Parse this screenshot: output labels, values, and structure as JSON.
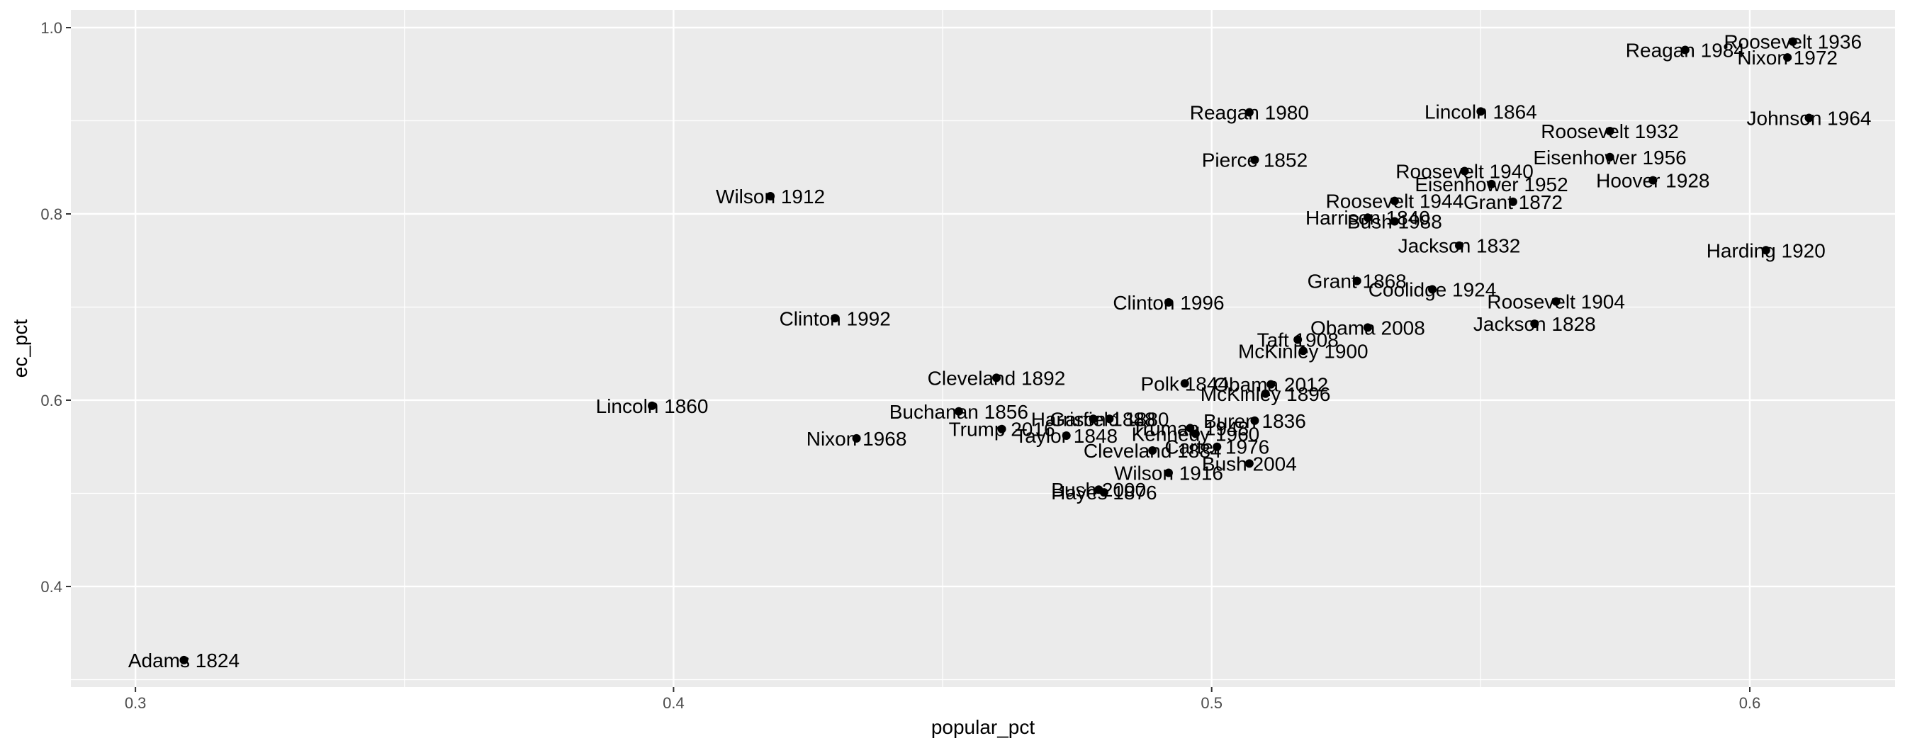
{
  "chart_data": {
    "type": "scatter",
    "xlabel": "popular_pct",
    "ylabel": "ec_pct",
    "xlim": [
      0.288,
      0.627
    ],
    "ylim": [
      0.292,
      1.019
    ],
    "x_ticks": [
      "0.3",
      "0.4",
      "0.5",
      "0.6"
    ],
    "x_tick_values": [
      0.3,
      0.4,
      0.5,
      0.6
    ],
    "y_ticks": [
      "0.4",
      "0.6",
      "0.8",
      "1.0"
    ],
    "y_tick_values": [
      0.4,
      0.6,
      0.8,
      1.0
    ],
    "grid": true,
    "colors": {
      "panel": "#ebebeb",
      "grid": "#ffffff",
      "point": "#000000"
    },
    "points": [
      {
        "label": "Adams 1824",
        "x": 0.309,
        "y": 0.321
      },
      {
        "label": "Lincoln 1860",
        "x": 0.396,
        "y": 0.594
      },
      {
        "label": "Wilson 1912",
        "x": 0.418,
        "y": 0.819
      },
      {
        "label": "Clinton 1992",
        "x": 0.43,
        "y": 0.688
      },
      {
        "label": "Nixon 1968",
        "x": 0.434,
        "y": 0.559
      },
      {
        "label": "Buchanan 1856",
        "x": 0.453,
        "y": 0.588
      },
      {
        "label": "Cleveland 1892",
        "x": 0.46,
        "y": 0.624
      },
      {
        "label": "Trump 2016",
        "x": 0.461,
        "y": 0.569
      },
      {
        "label": "Taylor 1848",
        "x": 0.473,
        "y": 0.562
      },
      {
        "label": "Hayes 1876",
        "x": 0.48,
        "y": 0.501
      },
      {
        "label": "Bush 2000",
        "x": 0.479,
        "y": 0.504
      },
      {
        "label": "Harrison 1888",
        "x": 0.478,
        "y": 0.58
      },
      {
        "label": "Garfield 1880",
        "x": 0.481,
        "y": 0.58
      },
      {
        "label": "Clinton 1996",
        "x": 0.492,
        "y": 0.705
      },
      {
        "label": "Wilson 1916",
        "x": 0.492,
        "y": 0.522
      },
      {
        "label": "Cleveland 1884",
        "x": 0.489,
        "y": 0.546
      },
      {
        "label": "Polk 1844",
        "x": 0.495,
        "y": 0.618
      },
      {
        "label": "Kennedy 1960",
        "x": 0.497,
        "y": 0.564
      },
      {
        "label": "Truman 1948",
        "x": 0.496,
        "y": 0.57
      },
      {
        "label": "Carter 1976",
        "x": 0.501,
        "y": 0.55
      },
      {
        "label": "Reagan 1980",
        "x": 0.507,
        "y": 0.909
      },
      {
        "label": "Pierce 1852",
        "x": 0.508,
        "y": 0.858
      },
      {
        "label": "Buren 1836",
        "x": 0.508,
        "y": 0.578
      },
      {
        "label": "Bush 2004",
        "x": 0.507,
        "y": 0.532
      },
      {
        "label": "McKinley 1896",
        "x": 0.51,
        "y": 0.607
      },
      {
        "label": "Obama 2012",
        "x": 0.511,
        "y": 0.617
      },
      {
        "label": "Taft 1908",
        "x": 0.516,
        "y": 0.665
      },
      {
        "label": "McKinley 1900",
        "x": 0.517,
        "y": 0.653
      },
      {
        "label": "Obama 2008",
        "x": 0.529,
        "y": 0.678
      },
      {
        "label": "Grant 1868",
        "x": 0.527,
        "y": 0.728
      },
      {
        "label": "Harrison 1840",
        "x": 0.529,
        "y": 0.796
      },
      {
        "label": "Bush 1988",
        "x": 0.534,
        "y": 0.792
      },
      {
        "label": "Roosevelt 1944",
        "x": 0.534,
        "y": 0.814
      },
      {
        "label": "Coolidge 1924",
        "x": 0.541,
        "y": 0.719
      },
      {
        "label": "Jackson 1832",
        "x": 0.546,
        "y": 0.766
      },
      {
        "label": "Roosevelt 1940",
        "x": 0.547,
        "y": 0.846
      },
      {
        "label": "Lincoln 1864",
        "x": 0.55,
        "y": 0.91
      },
      {
        "label": "Eisenhower 1952",
        "x": 0.552,
        "y": 0.832
      },
      {
        "label": "Grant 1872",
        "x": 0.556,
        "y": 0.813
      },
      {
        "label": "Jackson 1828",
        "x": 0.56,
        "y": 0.682
      },
      {
        "label": "Roosevelt 1904",
        "x": 0.564,
        "y": 0.706
      },
      {
        "label": "Eisenhower 1956",
        "x": 0.574,
        "y": 0.861
      },
      {
        "label": "Roosevelt 1932",
        "x": 0.574,
        "y": 0.889
      },
      {
        "label": "Hoover 1928",
        "x": 0.582,
        "y": 0.836
      },
      {
        "label": "Reagan 1984",
        "x": 0.588,
        "y": 0.976
      },
      {
        "label": "Harding 1920",
        "x": 0.603,
        "y": 0.761
      },
      {
        "label": "Nixon 1972",
        "x": 0.607,
        "y": 0.968
      },
      {
        "label": "Roosevelt 1936",
        "x": 0.608,
        "y": 0.985
      },
      {
        "label": "Johnson 1964",
        "x": 0.611,
        "y": 0.903
      }
    ]
  }
}
